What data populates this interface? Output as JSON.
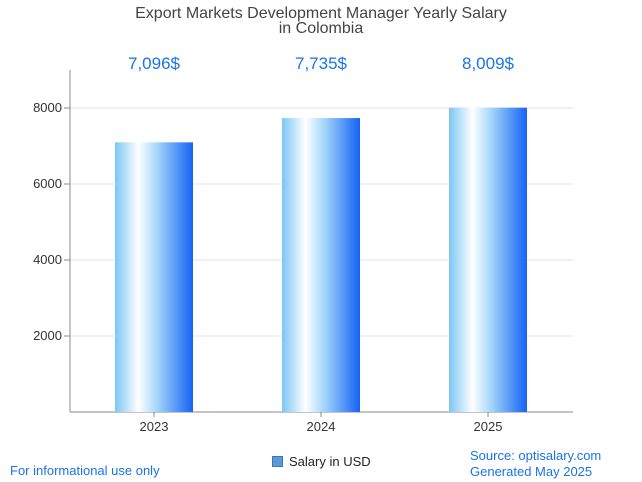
{
  "chart_data": {
    "type": "bar",
    "title_lines": [
      "Export Markets Development Manager Yearly Salary",
      "in Colombia"
    ],
    "categories": [
      "2023",
      "2024",
      "2025"
    ],
    "series": [
      {
        "name": "Salary in USD",
        "values": [
          7096,
          7735,
          8009
        ]
      }
    ],
    "data_labels": [
      "7,096$",
      "7,735$",
      "8,009$"
    ],
    "y_ticks": [
      2000,
      4000,
      6000,
      8000
    ],
    "ylim": [
      0,
      9000
    ],
    "grid": true,
    "legend_position": "bottom",
    "colors": {
      "bar_light": "#e8f6ff",
      "bar_mid": "#8fd0f7",
      "bar_dark": "#1662f5",
      "label": "#1a73e8"
    }
  },
  "footer": {
    "disclaimer": "For informational use only",
    "source": "Source: optisalary.com",
    "generated": "Generated May 2025"
  }
}
